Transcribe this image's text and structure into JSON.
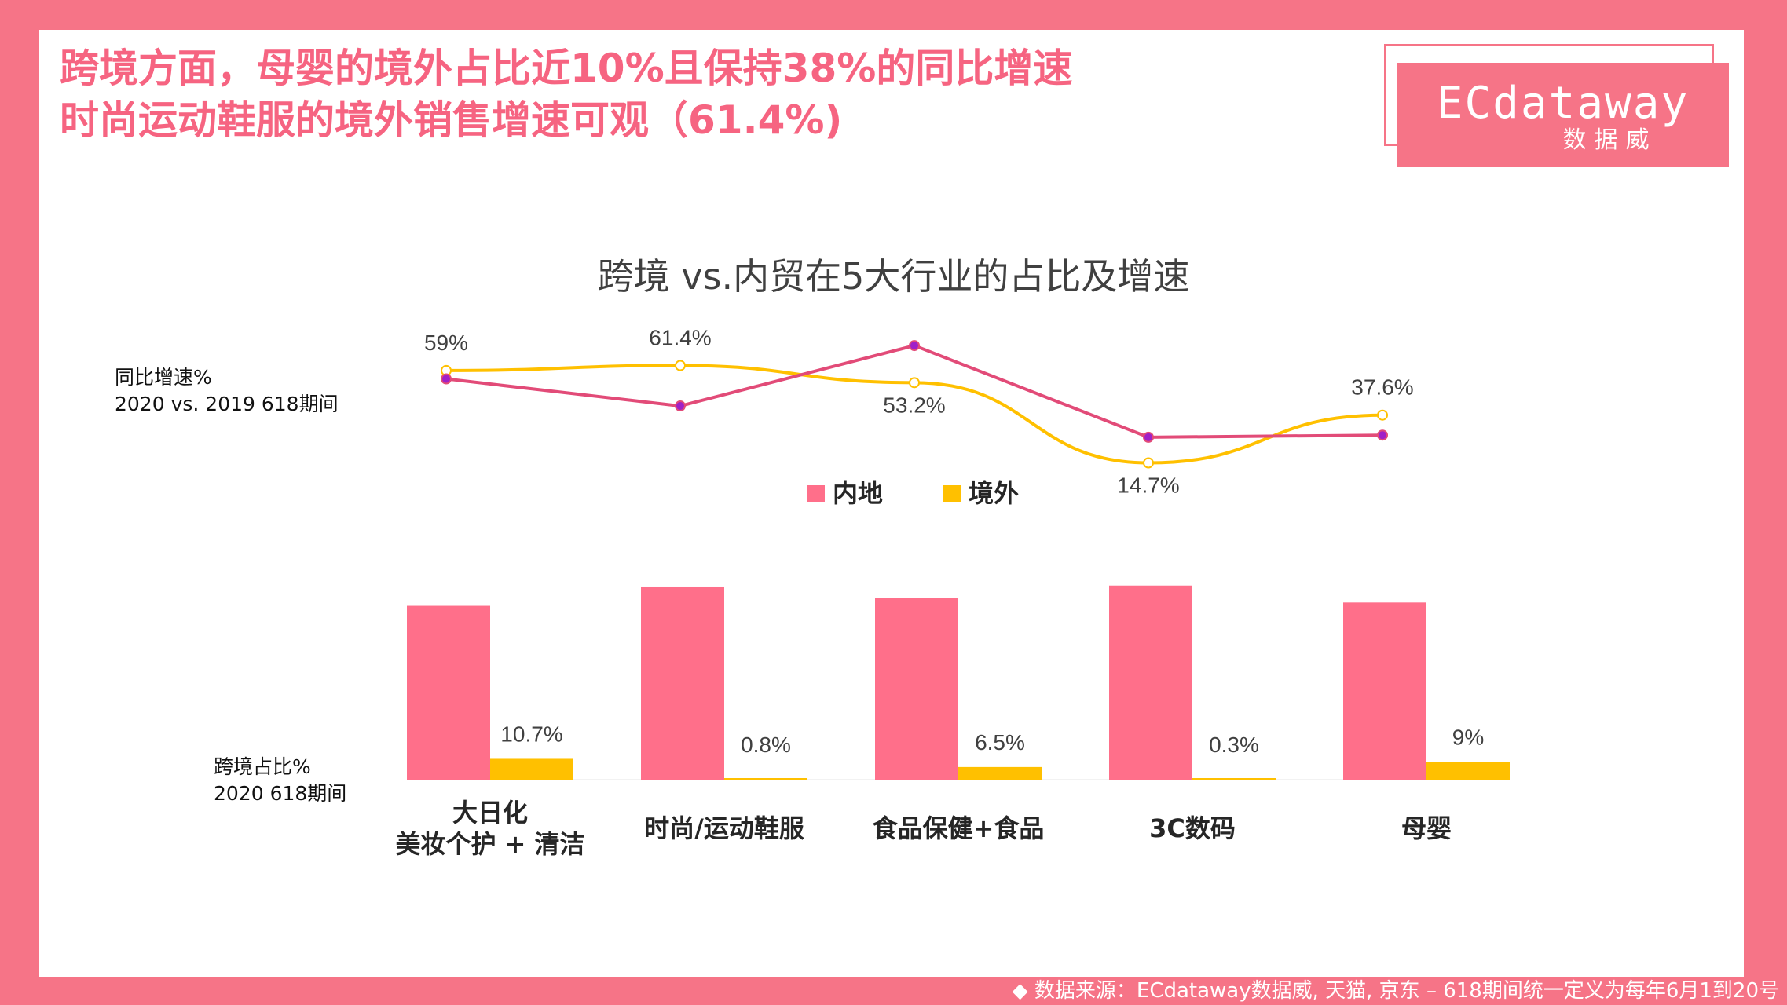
{
  "headline": {
    "line1": "跨境方面，母婴的境外占比近10%且保持38%的同比增速",
    "line2": "时尚运动鞋服的境外销售增速可观（61.4%)"
  },
  "logo": {
    "name": "ECdataway",
    "sub": "数据威"
  },
  "footer": "◆ 数据来源：ECdataway数据威, 天猫, 京东 – 618期间统一定义为每年6月1到20号",
  "labels": {
    "growth_line1": "同比增速%",
    "growth_line2": "2020 vs. 2019 618期间",
    "share_line1": "跨境占比%",
    "share_line2": "2020 618期间"
  },
  "colors": {
    "domestic": "#ff6f8a",
    "overseas": "#ffc000",
    "domestic_line": "#e24b78",
    "marker": "#a020c8",
    "accent": "#f67487"
  },
  "chart_data": {
    "title": "跨境 vs.内贸在5大行业的占比及增速",
    "legend": [
      "内地",
      "境外"
    ],
    "legend_position": "top-center",
    "categories": [
      [
        "大日化",
        "美妆个护 + 清洁"
      ],
      [
        "时尚/运动鞋服"
      ],
      [
        "食品保健+食品"
      ],
      [
        "3C数码"
      ],
      [
        "母婴"
      ]
    ],
    "share_bars": {
      "type": "bar",
      "ylim": [
        0,
        100
      ],
      "series": [
        {
          "name": "内地",
          "values": [
            89.3,
            99.2,
            93.5,
            99.7,
            91
          ]
        },
        {
          "name": "境外",
          "values": [
            10.7,
            0.8,
            6.5,
            0.3,
            9
          ],
          "labels": [
            "10.7%",
            "0.8%",
            "6.5%",
            "0.3%",
            "9%"
          ]
        }
      ]
    },
    "growth_lines": {
      "type": "line",
      "ylim": [
        0,
        80
      ],
      "series": [
        {
          "name": "内地",
          "values": [
            55,
            42,
            71,
            27,
            28
          ]
        },
        {
          "name": "境外",
          "values": [
            59,
            61.4,
            53.2,
            14.7,
            37.6
          ],
          "labels": [
            "59%",
            "61.4%",
            "53.2%",
            "14.7%",
            "37.6%"
          ]
        }
      ]
    }
  }
}
